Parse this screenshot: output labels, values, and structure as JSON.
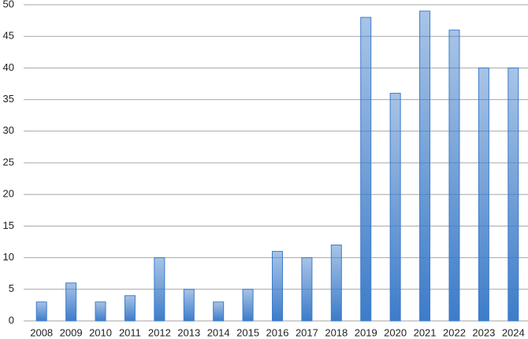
{
  "chart_data": {
    "type": "bar",
    "categories": [
      "2008",
      "2009",
      "2010",
      "2011",
      "2012",
      "2013",
      "2014",
      "2015",
      "2016",
      "2017",
      "2018",
      "2019",
      "2020",
      "2021",
      "2022",
      "2023",
      "2024"
    ],
    "values": [
      3,
      6,
      3,
      4,
      10,
      5,
      3,
      5,
      11,
      10,
      12,
      48,
      36,
      49,
      46,
      40,
      40
    ],
    "color": "#3d7cc9",
    "ylim": [
      0,
      50
    ],
    "yticks": [
      0,
      5,
      10,
      15,
      20,
      25,
      30,
      35,
      40,
      45,
      50
    ],
    "grid": true
  }
}
